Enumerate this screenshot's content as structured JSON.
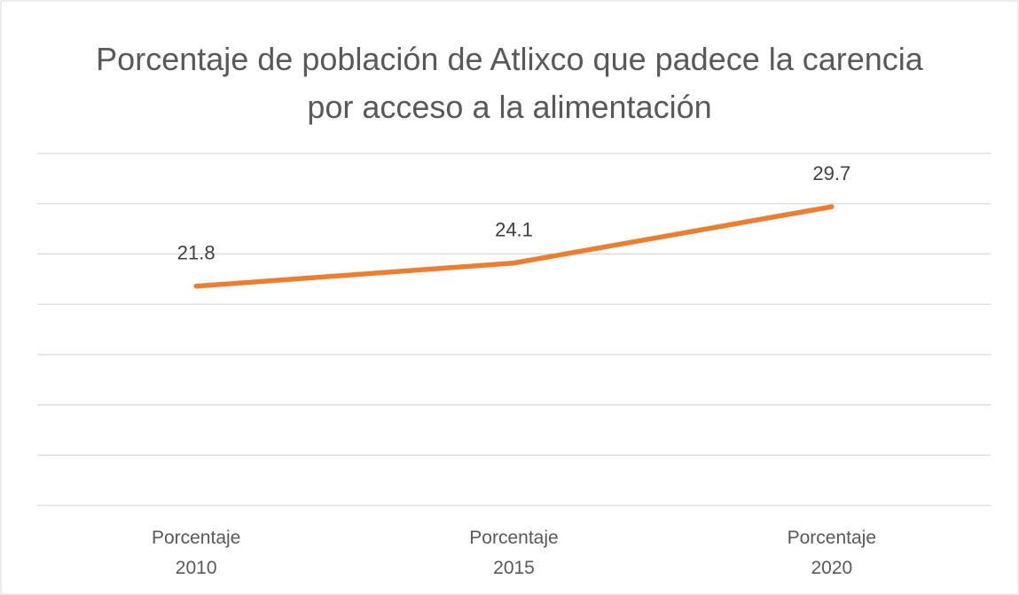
{
  "chart_data": {
    "type": "line",
    "title": "Porcentaje de población de Atlixco que padece la carencia por acceso a la alimentación",
    "categories": [
      "Porcentaje 2010",
      "Porcentaje 2015",
      "Porcentaje 2020"
    ],
    "values": [
      21.8,
      24.1,
      29.7
    ],
    "color": "#ed7d31",
    "ylim": [
      0,
      35
    ],
    "yticks": [
      0,
      5,
      10,
      15,
      20,
      25,
      30,
      35
    ],
    "grid": true
  }
}
